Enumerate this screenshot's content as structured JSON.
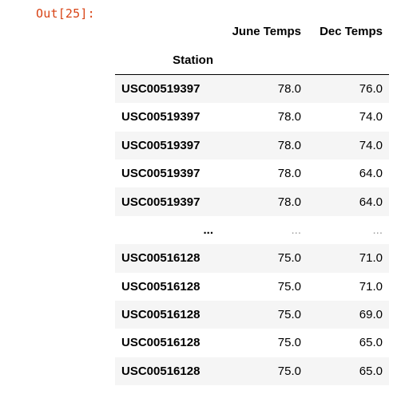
{
  "cell": {
    "prompt": "Out[25]:"
  },
  "dataframe": {
    "columns": [
      "June Temps",
      "Dec Temps"
    ],
    "index_name": "Station",
    "rows": [
      {
        "station": "USC00519397",
        "june": "78.0",
        "dec": "76.0"
      },
      {
        "station": "USC00519397",
        "june": "78.0",
        "dec": "74.0"
      },
      {
        "station": "USC00519397",
        "june": "78.0",
        "dec": "74.0"
      },
      {
        "station": "USC00519397",
        "june": "78.0",
        "dec": "64.0"
      },
      {
        "station": "USC00519397",
        "june": "78.0",
        "dec": "64.0"
      },
      {
        "station": "...",
        "june": "...",
        "dec": "..."
      },
      {
        "station": "USC00516128",
        "june": "75.0",
        "dec": "71.0"
      },
      {
        "station": "USC00516128",
        "june": "75.0",
        "dec": "71.0"
      },
      {
        "station": "USC00516128",
        "june": "75.0",
        "dec": "69.0"
      },
      {
        "station": "USC00516128",
        "june": "75.0",
        "dec": "65.0"
      },
      {
        "station": "USC00516128",
        "june": "75.0",
        "dec": "65.0"
      }
    ]
  }
}
